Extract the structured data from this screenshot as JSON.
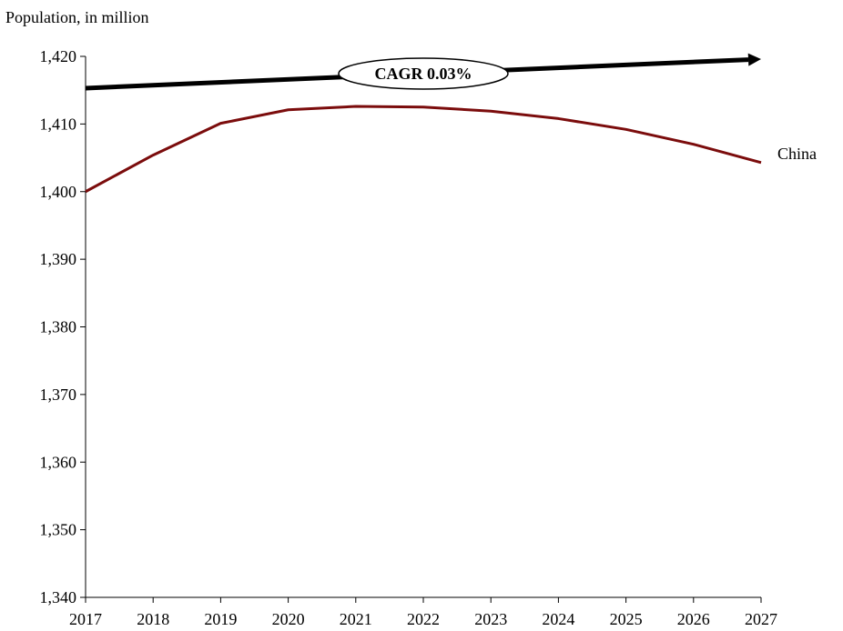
{
  "chart_data": {
    "type": "line",
    "title": "",
    "xlabel": "",
    "ylabel": "Population, in million",
    "x": [
      "2017",
      "2018",
      "2019",
      "2020",
      "2021",
      "2022",
      "2023",
      "2024",
      "2025",
      "2026",
      "2027"
    ],
    "series": [
      {
        "name": "China",
        "color": "#7b0c0c",
        "values": [
          1400.0,
          1405.4,
          1410.1,
          1412.1,
          1412.6,
          1412.5,
          1411.9,
          1410.8,
          1409.2,
          1407.0,
          1404.3
        ]
      }
    ],
    "ylim": [
      1340,
      1420
    ],
    "yticks": [
      1340,
      1350,
      1360,
      1370,
      1380,
      1390,
      1400,
      1410,
      1420
    ],
    "ytick_labels": [
      "1,340",
      "1,350",
      "1,360",
      "1,370",
      "1,380",
      "1,390",
      "1,400",
      "1,410",
      "1,420"
    ],
    "grid": false,
    "legend": "none",
    "annotations": [
      {
        "type": "trend-arrow",
        "label": "CAGR 0.03%",
        "start": {
          "x": "2017",
          "y": 1415.3
        },
        "end": {
          "x": "2027",
          "y": 1419.6
        }
      }
    ]
  }
}
